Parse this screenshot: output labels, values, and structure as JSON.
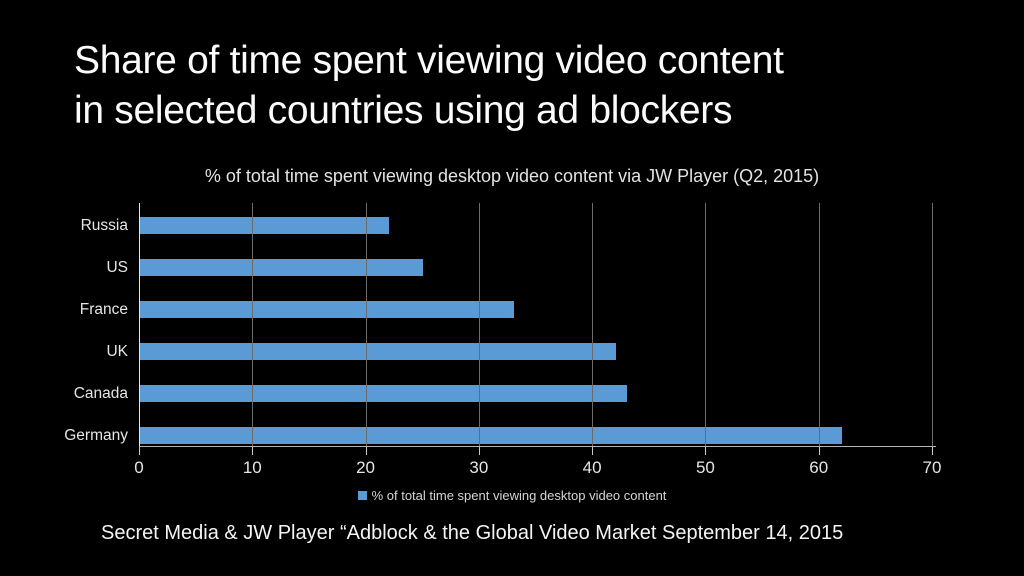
{
  "slide": {
    "title_line1": "Share of time spent viewing video content",
    "title_line2": "in selected countries using ad blockers",
    "source": "Secret Media & JW Player “Adblock & the Global Video Market September 14, 2015"
  },
  "chart_data": {
    "type": "bar",
    "orientation": "horizontal",
    "title": "% of total time spent viewing desktop video content via JW Player (Q2, 2015)",
    "categories": [
      "Russia",
      "US",
      "France",
      "UK",
      "Canada",
      "Germany"
    ],
    "values": [
      22,
      25,
      33,
      42,
      43,
      62
    ],
    "series_label": "% of total time spent viewing desktop video content",
    "xlabel": "",
    "ylabel": "",
    "xlim": [
      0,
      70
    ],
    "xticks": [
      0,
      10,
      20,
      30,
      40,
      50,
      60,
      70
    ],
    "grid": true,
    "gridlines_over_bars": true,
    "legend_position": "bottom"
  },
  "colors": {
    "background": "#000000",
    "bar": "#5B9BD5",
    "gridline": "#6B6B6B",
    "axis_line": "#E6E6E6",
    "title_text": "#FBFBFB",
    "label_text": "#E6E6E6"
  }
}
